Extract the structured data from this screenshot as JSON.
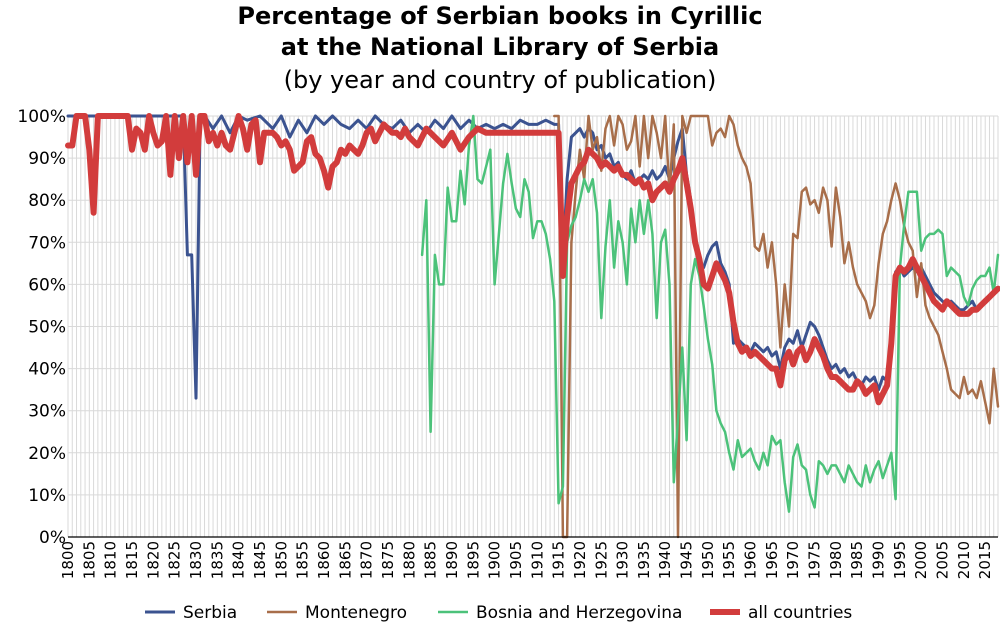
{
  "chart_data": {
    "type": "line",
    "title_line1": "Percentage of Serbian books in Cyrillic",
    "title_line2": "at the National Library of Serbia",
    "subtitle": "(by year and country of publication)",
    "xlim": [
      1800,
      2018
    ],
    "ylim": [
      0,
      100
    ],
    "grid": true,
    "legend_position": "bottom",
    "y_ticks": [
      "0%",
      "10%",
      "20%",
      "30%",
      "40%",
      "50%",
      "60%",
      "70%",
      "80%",
      "90%",
      "100%"
    ],
    "x_ticks": [
      "1800",
      "1805",
      "1810",
      "1815",
      "1820",
      "1825",
      "1830",
      "1835",
      "1840",
      "1845",
      "1850",
      "1855",
      "1860",
      "1865",
      "1870",
      "1875",
      "1880",
      "1885",
      "1890",
      "1895",
      "1900",
      "1905",
      "1910",
      "1915",
      "1920",
      "1925",
      "1930",
      "1935",
      "1940",
      "1945",
      "1950",
      "1955",
      "1960",
      "1965",
      "1970",
      "1975",
      "1980",
      "1985",
      "1990",
      "1995",
      "2000",
      "2005",
      "2010",
      "2015"
    ],
    "series": [
      {
        "name": "Serbia",
        "color": "#3b5390",
        "x": [
          1800,
          1802,
          1804,
          1806,
          1808,
          1810,
          1813,
          1815,
          1818,
          1820,
          1822,
          1824,
          1826,
          1827,
          1828,
          1829,
          1830,
          1831,
          1832,
          1834,
          1836,
          1838,
          1840,
          1842,
          1845,
          1848,
          1850,
          1852,
          1854,
          1856,
          1858,
          1860,
          1862,
          1864,
          1866,
          1868,
          1870,
          1872,
          1874,
          1876,
          1878,
          1880,
          1882,
          1884,
          1886,
          1888,
          1890,
          1892,
          1894,
          1896,
          1898,
          1900,
          1902,
          1904,
          1906,
          1908,
          1910,
          1912,
          1914,
          1915,
          1916,
          1917,
          1918,
          1919,
          1920,
          1921,
          1922,
          1923,
          1924,
          1925,
          1926,
          1927,
          1928,
          1929,
          1930,
          1931,
          1932,
          1933,
          1934,
          1935,
          1936,
          1937,
          1938,
          1939,
          1940,
          1941,
          1942,
          1943,
          1944,
          1945,
          1946,
          1947,
          1948,
          1949,
          1950,
          1951,
          1952,
          1953,
          1954,
          1955,
          1956,
          1957,
          1958,
          1959,
          1960,
          1961,
          1962,
          1963,
          1964,
          1965,
          1966,
          1967,
          1968,
          1969,
          1970,
          1971,
          1972,
          1973,
          1974,
          1975,
          1976,
          1977,
          1978,
          1979,
          1980,
          1981,
          1982,
          1983,
          1984,
          1985,
          1986,
          1987,
          1988,
          1989,
          1990,
          1991,
          1992,
          1993,
          1994,
          1995,
          1996,
          1997,
          1998,
          1999,
          2000,
          2001,
          2002,
          2003,
          2004,
          2005,
          2006,
          2007,
          2008,
          2009,
          2010,
          2011,
          2012,
          2013,
          2014,
          2015,
          2016,
          2017,
          2018
        ],
        "values": [
          100,
          100,
          100,
          100,
          100,
          100,
          100,
          100,
          100,
          100,
          100,
          100,
          100,
          100,
          67,
          67,
          33,
          100,
          100,
          97,
          100,
          96,
          100,
          99,
          100,
          97,
          100,
          95,
          99,
          96,
          100,
          98,
          100,
          98,
          97,
          99,
          97,
          100,
          98,
          97,
          99,
          96,
          98,
          96,
          99,
          97,
          100,
          97,
          99,
          97,
          98,
          97,
          98,
          97,
          99,
          98,
          98,
          99,
          98,
          98,
          65,
          85,
          95,
          96,
          97,
          95,
          97,
          96,
          92,
          93,
          90,
          91,
          88,
          89,
          86,
          85,
          87,
          84,
          85,
          86,
          85,
          87,
          85,
          86,
          88,
          85,
          90,
          94,
          97,
          86,
          80,
          70,
          63,
          64,
          67,
          69,
          70,
          65,
          63,
          60,
          46,
          47,
          46,
          45,
          44,
          46,
          45,
          44,
          45,
          43,
          44,
          40,
          45,
          47,
          46,
          49,
          45,
          48,
          51,
          50,
          48,
          45,
          42,
          40,
          41,
          39,
          40,
          38,
          39,
          37,
          36,
          38,
          37,
          38,
          35,
          38,
          37,
          45,
          63,
          64,
          62,
          63,
          64,
          63,
          64,
          62,
          60,
          58,
          57,
          56,
          55,
          56,
          55,
          54,
          54,
          55,
          56,
          54,
          55,
          56,
          57,
          58,
          59
        ],
        "width": 3
      },
      {
        "name": "Montenegro",
        "color": "#a86e4a",
        "x": [
          1914,
          1915,
          1916,
          1917,
          1918,
          1919,
          1920,
          1921,
          1922,
          1923,
          1924,
          1925,
          1926,
          1927,
          1928,
          1929,
          1930,
          1931,
          1932,
          1933,
          1934,
          1935,
          1936,
          1937,
          1938,
          1939,
          1940,
          1941,
          1942,
          1943,
          1944,
          1945,
          1946,
          1947,
          1948,
          1949,
          1950,
          1951,
          1952,
          1953,
          1954,
          1955,
          1956,
          1957,
          1958,
          1959,
          1960,
          1961,
          1962,
          1963,
          1964,
          1965,
          1966,
          1967,
          1968,
          1969,
          1970,
          1971,
          1972,
          1973,
          1974,
          1975,
          1976,
          1977,
          1978,
          1979,
          1980,
          1981,
          1982,
          1983,
          1984,
          1985,
          1986,
          1987,
          1988,
          1989,
          1990,
          1991,
          1992,
          1993,
          1994,
          1995,
          1996,
          1997,
          1998,
          1999,
          2000,
          2001,
          2002,
          2003,
          2004,
          2005,
          2006,
          2007,
          2008,
          2009,
          2010,
          2011,
          2012,
          2013,
          2014,
          2015,
          2016,
          2017,
          2018
        ],
        "values": [
          100,
          100,
          0,
          0,
          70,
          82,
          92,
          85,
          100,
          92,
          95,
          87,
          97,
          100,
          93,
          100,
          98,
          92,
          94,
          100,
          88,
          100,
          90,
          100,
          96,
          90,
          100,
          82,
          98,
          0,
          100,
          96,
          100,
          100,
          100,
          100,
          100,
          93,
          96,
          97,
          95,
          100,
          98,
          93,
          90,
          88,
          84,
          69,
          68,
          72,
          64,
          70,
          60,
          45,
          60,
          50,
          72,
          71,
          82,
          83,
          79,
          80,
          77,
          83,
          80,
          69,
          83,
          76,
          65,
          70,
          64,
          60,
          58,
          56,
          52,
          55,
          65,
          72,
          75,
          80,
          84,
          80,
          74,
          70,
          68,
          57,
          65,
          55,
          52,
          50,
          48,
          44,
          40,
          35,
          34,
          33,
          38,
          34,
          35,
          33,
          37,
          32,
          27,
          40,
          31
        ],
        "width": 2.5
      },
      {
        "name": "Bosnia and Herzegovina",
        "color": "#4cc27a",
        "x": [
          1883,
          1884,
          1885,
          1886,
          1887,
          1888,
          1889,
          1890,
          1891,
          1892,
          1893,
          1894,
          1895,
          1896,
          1897,
          1898,
          1899,
          1900,
          1901,
          1902,
          1903,
          1904,
          1905,
          1906,
          1907,
          1908,
          1909,
          1910,
          1911,
          1912,
          1913,
          1914,
          1915,
          1916,
          1917,
          1918,
          1919,
          1920,
          1921,
          1922,
          1923,
          1924,
          1925,
          1926,
          1927,
          1928,
          1929,
          1930,
          1931,
          1932,
          1933,
          1934,
          1935,
          1936,
          1937,
          1938,
          1939,
          1940,
          1941,
          1942,
          1943,
          1944,
          1945,
          1946,
          1947,
          1948,
          1949,
          1950,
          1951,
          1952,
          1953,
          1954,
          1955,
          1956,
          1957,
          1958,
          1959,
          1960,
          1961,
          1962,
          1963,
          1964,
          1965,
          1966,
          1967,
          1968,
          1969,
          1970,
          1971,
          1972,
          1973,
          1974,
          1975,
          1976,
          1977,
          1978,
          1979,
          1980,
          1981,
          1982,
          1983,
          1984,
          1985,
          1986,
          1987,
          1988,
          1989,
          1990,
          1991,
          1992,
          1993,
          1994,
          1995,
          1996,
          1997,
          1998,
          1999,
          2000,
          2001,
          2002,
          2003,
          2004,
          2005,
          2006,
          2007,
          2008,
          2009,
          2010,
          2011,
          2012,
          2013,
          2014,
          2015,
          2016,
          2017,
          2018
        ],
        "values": [
          67,
          80,
          25,
          67,
          60,
          60,
          83,
          75,
          75,
          87,
          79,
          93,
          100,
          85,
          84,
          88,
          92,
          60,
          72,
          84,
          91,
          84,
          78,
          76,
          85,
          82,
          71,
          75,
          75,
          72,
          66,
          56,
          8,
          12,
          70,
          74,
          76,
          80,
          85,
          82,
          85,
          77,
          52,
          69,
          80,
          64,
          75,
          70,
          60,
          78,
          70,
          80,
          72,
          80,
          72,
          52,
          70,
          73,
          60,
          13,
          28,
          45,
          23,
          60,
          66,
          62,
          55,
          47,
          41,
          30,
          27,
          25,
          20,
          16,
          23,
          19,
          20,
          21,
          18,
          16,
          20,
          17,
          24,
          22,
          23,
          13,
          6,
          19,
          22,
          17,
          16,
          10,
          7,
          18,
          17,
          15,
          17,
          17,
          15,
          13,
          17,
          15,
          13,
          12,
          17,
          13,
          16,
          18,
          14,
          17,
          20,
          9,
          64,
          74,
          82,
          82,
          82,
          68,
          71,
          72,
          72,
          73,
          72,
          62,
          64,
          63,
          62,
          57,
          55,
          59,
          61,
          62,
          62,
          64,
          58,
          67
        ],
        "width": 2.5
      },
      {
        "name": "all countries",
        "color": "#d23c3c",
        "x": [
          1800,
          1801,
          1802,
          1803,
          1804,
          1805,
          1806,
          1807,
          1808,
          1810,
          1813,
          1814,
          1815,
          1816,
          1817,
          1818,
          1819,
          1820,
          1821,
          1822,
          1823,
          1824,
          1825,
          1826,
          1827,
          1828,
          1829,
          1830,
          1831,
          1832,
          1833,
          1834,
          1835,
          1836,
          1837,
          1838,
          1839,
          1840,
          1841,
          1842,
          1843,
          1844,
          1845,
          1846,
          1847,
          1848,
          1849,
          1850,
          1851,
          1852,
          1853,
          1854,
          1855,
          1856,
          1857,
          1858,
          1859,
          1860,
          1861,
          1862,
          1863,
          1864,
          1865,
          1866,
          1867,
          1868,
          1869,
          1870,
          1871,
          1872,
          1873,
          1874,
          1875,
          1876,
          1877,
          1878,
          1879,
          1880,
          1882,
          1884,
          1886,
          1888,
          1890,
          1892,
          1894,
          1896,
          1898,
          1900,
          1902,
          1904,
          1906,
          1908,
          1910,
          1912,
          1914,
          1915,
          1916,
          1917,
          1918,
          1919,
          1920,
          1921,
          1922,
          1923,
          1924,
          1925,
          1926,
          1927,
          1928,
          1929,
          1930,
          1931,
          1932,
          1933,
          1934,
          1935,
          1936,
          1937,
          1938,
          1939,
          1940,
          1941,
          1942,
          1943,
          1944,
          1945,
          1946,
          1947,
          1948,
          1949,
          1950,
          1951,
          1952,
          1953,
          1954,
          1955,
          1956,
          1957,
          1958,
          1959,
          1960,
          1961,
          1962,
          1963,
          1964,
          1965,
          1966,
          1967,
          1968,
          1969,
          1970,
          1971,
          1972,
          1973,
          1974,
          1975,
          1976,
          1977,
          1978,
          1979,
          1980,
          1981,
          1982,
          1983,
          1984,
          1985,
          1986,
          1987,
          1988,
          1989,
          1990,
          1991,
          1992,
          1993,
          1994,
          1995,
          1996,
          1997,
          1998,
          1999,
          2000,
          2001,
          2002,
          2003,
          2004,
          2005,
          2006,
          2007,
          2008,
          2009,
          2010,
          2011,
          2012,
          2013,
          2014,
          2015,
          2016,
          2017,
          2018
        ],
        "values": [
          93,
          93,
          100,
          100,
          100,
          92,
          77,
          100,
          100,
          100,
          100,
          100,
          92,
          97,
          96,
          92,
          100,
          96,
          93,
          94,
          100,
          86,
          100,
          90,
          100,
          89,
          100,
          86,
          100,
          100,
          94,
          96,
          93,
          96,
          93,
          92,
          96,
          100,
          97,
          92,
          98,
          99,
          89,
          96,
          96,
          96,
          95,
          93,
          94,
          92,
          87,
          88,
          89,
          94,
          95,
          91,
          90,
          87,
          83,
          88,
          89,
          92,
          91,
          93,
          92,
          91,
          93,
          96,
          97,
          94,
          96,
          98,
          97,
          96,
          96,
          95,
          97,
          95,
          93,
          97,
          95,
          93,
          96,
          92,
          95,
          97,
          96,
          96,
          96,
          96,
          96,
          96,
          96,
          96,
          96,
          96,
          62,
          76,
          84,
          86,
          88,
          89,
          92,
          91,
          90,
          88,
          89,
          88,
          87,
          88,
          86,
          86,
          85,
          84,
          85,
          83,
          84,
          80,
          82,
          83,
          84,
          82,
          85,
          87,
          90,
          84,
          78,
          70,
          66,
          60,
          59,
          62,
          65,
          63,
          61,
          58,
          51,
          46,
          44,
          45,
          43,
          44,
          43,
          42,
          41,
          40,
          40,
          36,
          42,
          44,
          41,
          44,
          45,
          42,
          44,
          47,
          45,
          43,
          40,
          38,
          38,
          37,
          36,
          35,
          35,
          37,
          36,
          34,
          35,
          36,
          32,
          34,
          36,
          46,
          62,
          64,
          63,
          64,
          66,
          64,
          62,
          60,
          58,
          56,
          55,
          54,
          56,
          55,
          54,
          53,
          53,
          53,
          54,
          54,
          55,
          56,
          57,
          58,
          59
        ],
        "width": 6
      }
    ]
  }
}
